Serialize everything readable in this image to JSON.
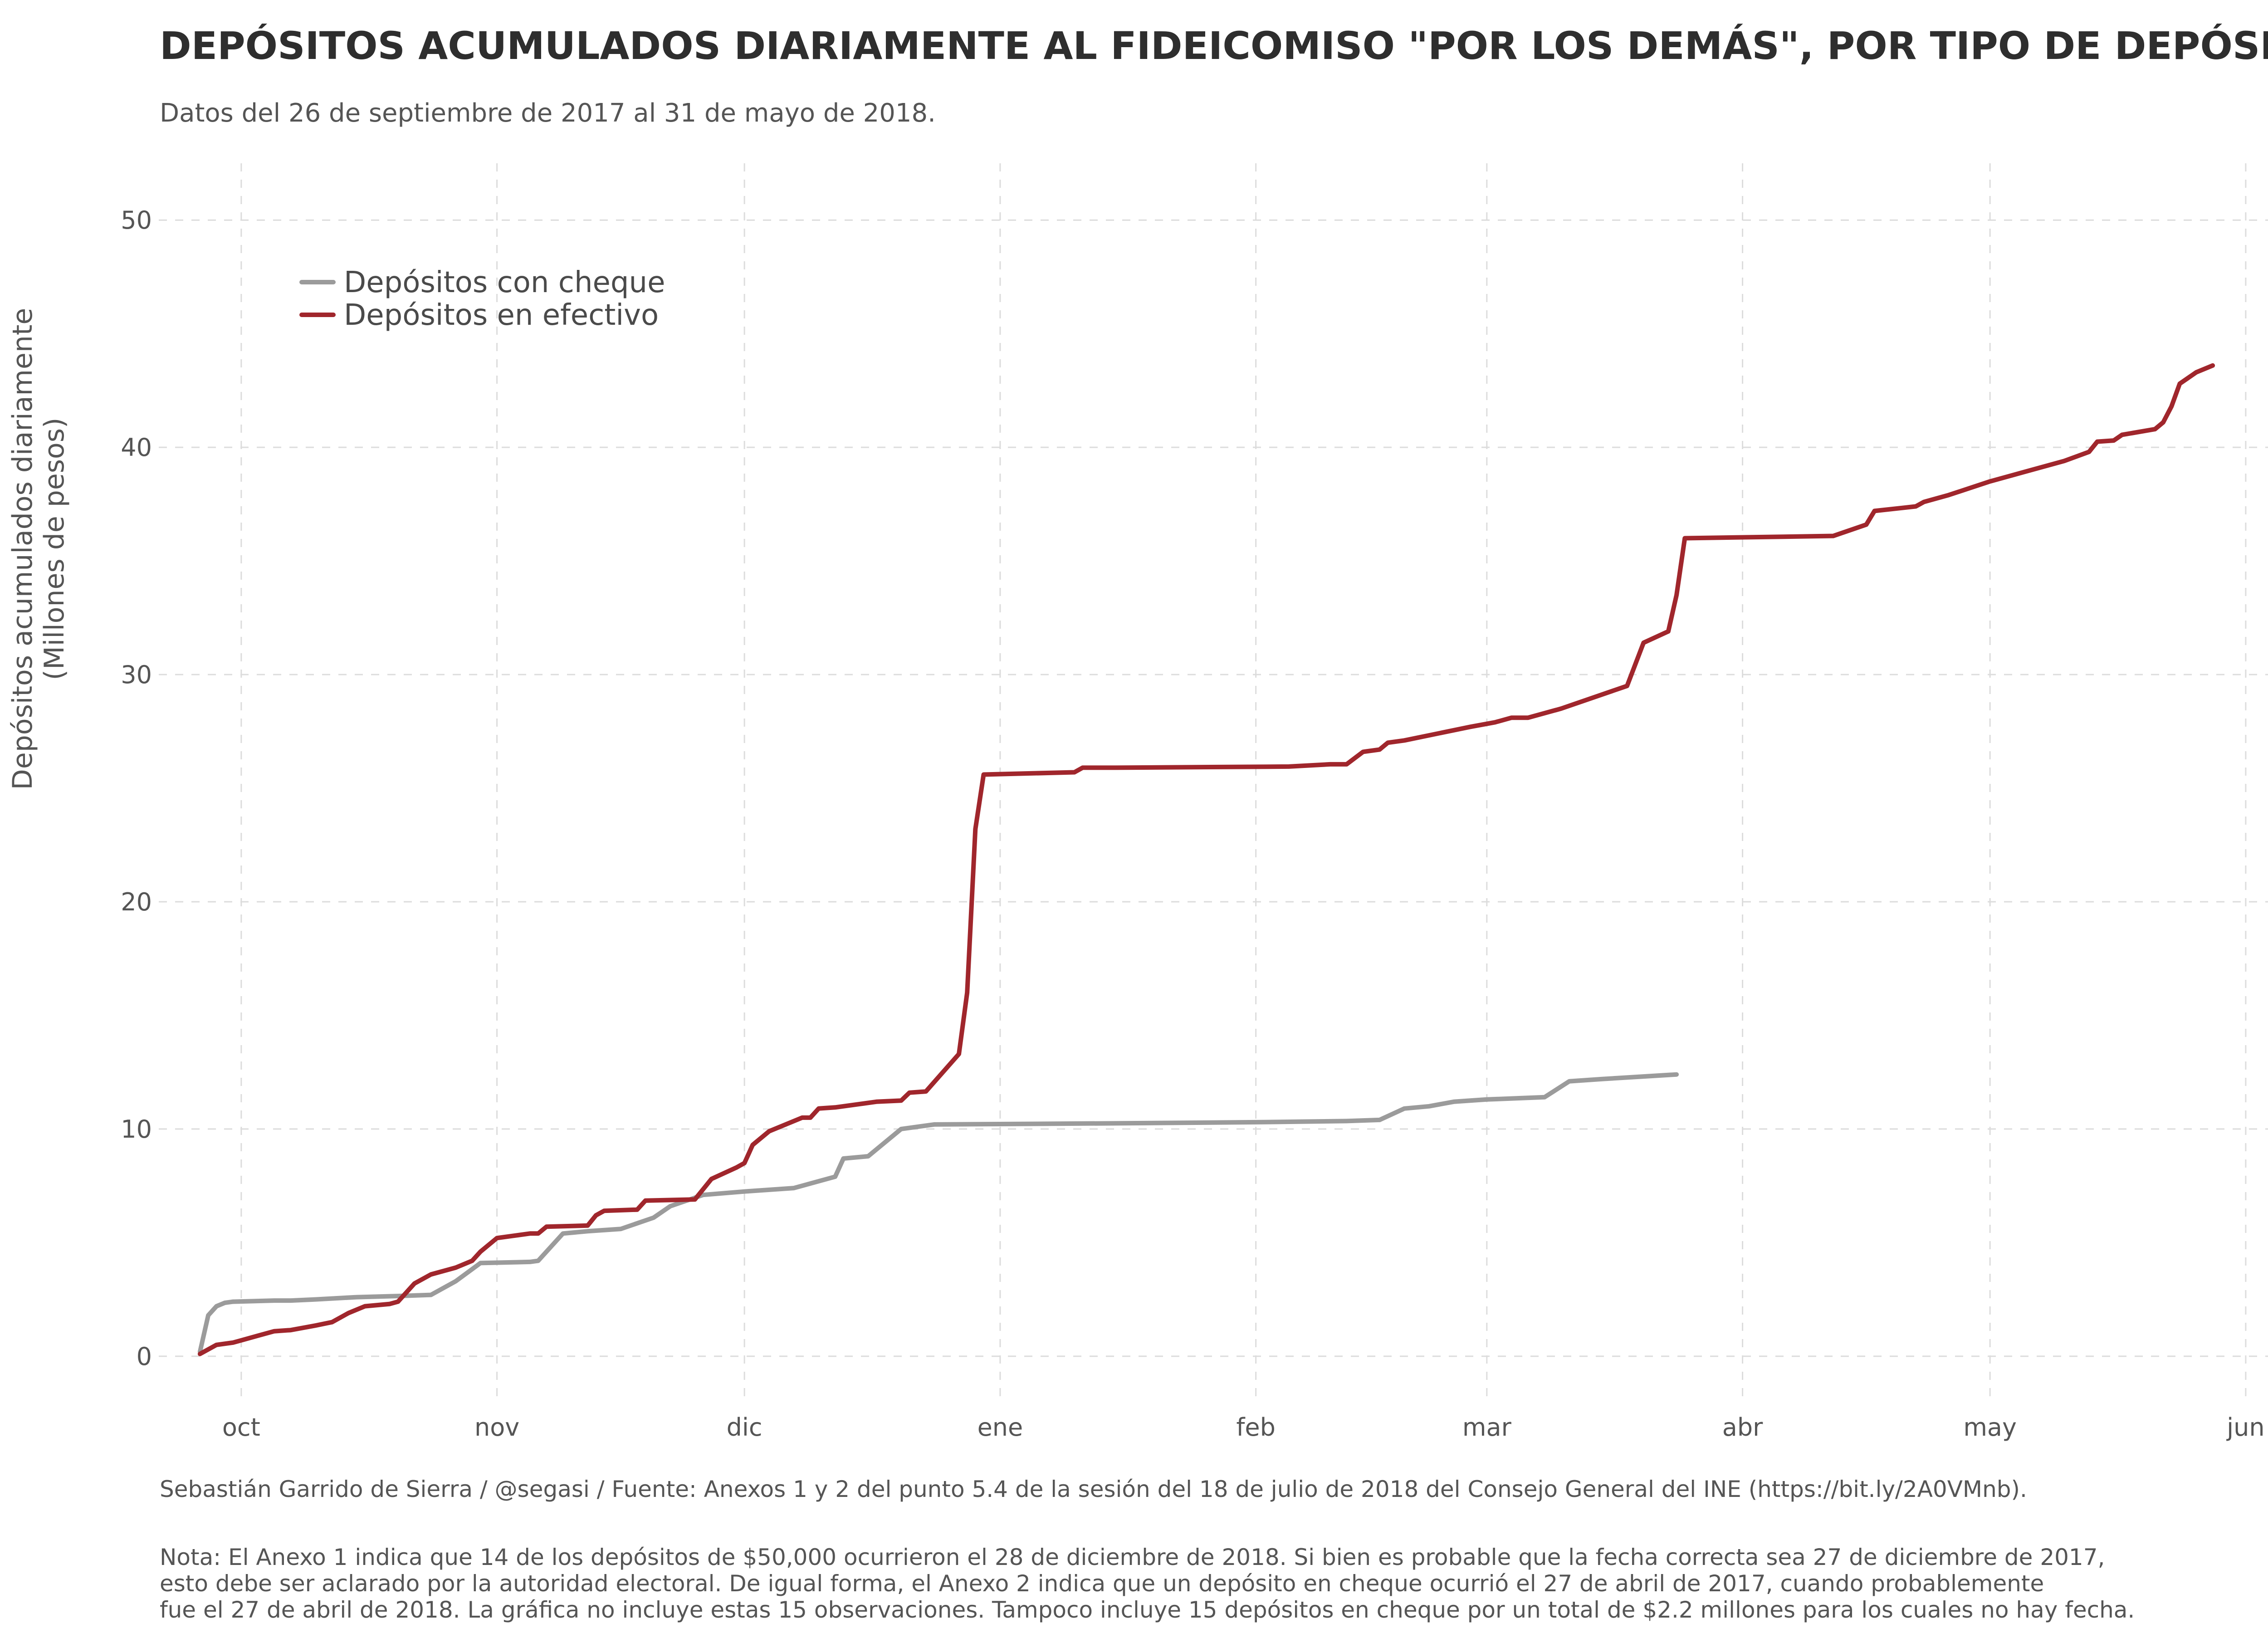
{
  "chart_data": {
    "type": "line",
    "title": "DEPÓSITOS ACUMULADOS DIARIAMENTE AL FIDEICOMISO \"POR LOS DEMÁS\", POR TIPO DE DEPÓSITO",
    "subtitle": "Datos del 26 de septiembre de 2017 al 31 de mayo de 2018.",
    "ylabel": [
      "Depósitos acumulados diariamente",
      "(Millones de pesos)"
    ],
    "xlabel": "",
    "x_axis": {
      "type": "date",
      "range": [
        "2017-09-21",
        "2018-06-07"
      ],
      "ticks": [
        {
          "date": "2017-10-01",
          "label": "oct"
        },
        {
          "date": "2017-11-01",
          "label": "nov"
        },
        {
          "date": "2017-12-01",
          "label": "dic"
        },
        {
          "date": "2018-01-01",
          "label": "ene"
        },
        {
          "date": "2018-02-01",
          "label": "feb"
        },
        {
          "date": "2018-03-01",
          "label": "mar"
        },
        {
          "date": "2018-04-01",
          "label": "abr"
        },
        {
          "date": "2018-05-01",
          "label": "may"
        },
        {
          "date": "2018-06-01",
          "label": "jun"
        }
      ]
    },
    "y_axis": {
      "range": [
        -2,
        52.5
      ],
      "ticks": [
        0,
        10,
        20,
        30,
        40,
        50
      ]
    },
    "grid": true,
    "legend_position": "top-left",
    "series": [
      {
        "name": "Depósitos con cheque",
        "color": "#9b9b9b",
        "points": [
          [
            "2017-09-26",
            0.2
          ],
          [
            "2017-09-27",
            1.8
          ],
          [
            "2017-09-28",
            2.2
          ],
          [
            "2017-09-29",
            2.35
          ],
          [
            "2017-09-30",
            2.4
          ],
          [
            "2017-10-05",
            2.45
          ],
          [
            "2017-10-07",
            2.45
          ],
          [
            "2017-10-10",
            2.5
          ],
          [
            "2017-10-15",
            2.6
          ],
          [
            "2017-10-20",
            2.65
          ],
          [
            "2017-10-24",
            2.7
          ],
          [
            "2017-10-27",
            3.3
          ],
          [
            "2017-10-30",
            4.1
          ],
          [
            "2017-11-05",
            4.15
          ],
          [
            "2017-11-06",
            4.2
          ],
          [
            "2017-11-09",
            5.4
          ],
          [
            "2017-11-12",
            5.5
          ],
          [
            "2017-11-16",
            5.6
          ],
          [
            "2017-11-20",
            6.1
          ],
          [
            "2017-11-22",
            6.6
          ],
          [
            "2017-11-26",
            7.1
          ],
          [
            "2017-12-01",
            7.25
          ],
          [
            "2017-12-07",
            7.4
          ],
          [
            "2017-12-12",
            7.9
          ],
          [
            "2017-12-13",
            8.7
          ],
          [
            "2017-12-16",
            8.8
          ],
          [
            "2017-12-20",
            10.0
          ],
          [
            "2017-12-24",
            10.2
          ],
          [
            "2018-01-15",
            10.25
          ],
          [
            "2018-02-01",
            10.3
          ],
          [
            "2018-02-12",
            10.35
          ],
          [
            "2018-02-16",
            10.4
          ],
          [
            "2018-02-19",
            10.9
          ],
          [
            "2018-02-22",
            11.0
          ],
          [
            "2018-02-25",
            11.2
          ],
          [
            "2018-03-01",
            11.3
          ],
          [
            "2018-03-08",
            11.4
          ],
          [
            "2018-03-11",
            12.1
          ],
          [
            "2018-03-15",
            12.2
          ],
          [
            "2018-03-24",
            12.4
          ]
        ]
      },
      {
        "name": "Depósitos en efectivo",
        "color": "#a0262c",
        "points": [
          [
            "2017-09-26",
            0.1
          ],
          [
            "2017-09-27",
            0.3
          ],
          [
            "2017-09-28",
            0.5
          ],
          [
            "2017-09-30",
            0.6
          ],
          [
            "2017-10-01",
            0.7
          ],
          [
            "2017-10-03",
            0.9
          ],
          [
            "2017-10-05",
            1.1
          ],
          [
            "2017-10-07",
            1.15
          ],
          [
            "2017-10-10",
            1.35
          ],
          [
            "2017-10-12",
            1.5
          ],
          [
            "2017-10-14",
            1.9
          ],
          [
            "2017-10-16",
            2.2
          ],
          [
            "2017-10-19",
            2.3
          ],
          [
            "2017-10-20",
            2.4
          ],
          [
            "2017-10-22",
            3.2
          ],
          [
            "2017-10-24",
            3.6
          ],
          [
            "2017-10-27",
            3.9
          ],
          [
            "2017-10-29",
            4.2
          ],
          [
            "2017-10-30",
            4.6
          ],
          [
            "2017-11-01",
            5.2
          ],
          [
            "2017-11-03",
            5.3
          ],
          [
            "2017-11-05",
            5.4
          ],
          [
            "2017-11-06",
            5.4
          ],
          [
            "2017-11-07",
            5.7
          ],
          [
            "2017-11-12",
            5.75
          ],
          [
            "2017-11-13",
            6.2
          ],
          [
            "2017-11-14",
            6.4
          ],
          [
            "2017-11-18",
            6.45
          ],
          [
            "2017-11-19",
            6.85
          ],
          [
            "2017-11-25",
            6.9
          ],
          [
            "2017-11-27",
            7.8
          ],
          [
            "2017-11-30",
            8.3
          ],
          [
            "2017-12-01",
            8.5
          ],
          [
            "2017-12-02",
            9.3
          ],
          [
            "2017-12-04",
            9.9
          ],
          [
            "2017-12-06",
            10.2
          ],
          [
            "2017-12-08",
            10.5
          ],
          [
            "2017-12-09",
            10.5
          ],
          [
            "2017-12-10",
            10.9
          ],
          [
            "2017-12-12",
            10.95
          ],
          [
            "2017-12-15",
            11.1
          ],
          [
            "2017-12-17",
            11.2
          ],
          [
            "2017-12-20",
            11.25
          ],
          [
            "2017-12-21",
            11.6
          ],
          [
            "2017-12-23",
            11.65
          ],
          [
            "2017-12-27",
            13.3
          ],
          [
            "2017-12-28",
            16.0
          ],
          [
            "2017-12-29",
            23.2
          ],
          [
            "2017-12-30",
            25.6
          ],
          [
            "2018-01-10",
            25.7
          ],
          [
            "2018-01-11",
            25.9
          ],
          [
            "2018-01-15",
            25.9
          ],
          [
            "2018-02-05",
            25.95
          ],
          [
            "2018-02-10",
            26.05
          ],
          [
            "2018-02-12",
            26.05
          ],
          [
            "2018-02-14",
            26.6
          ],
          [
            "2018-02-16",
            26.7
          ],
          [
            "2018-02-17",
            27.0
          ],
          [
            "2018-02-19",
            27.1
          ],
          [
            "2018-02-27",
            27.7
          ],
          [
            "2018-03-02",
            27.9
          ],
          [
            "2018-03-04",
            28.1
          ],
          [
            "2018-03-06",
            28.1
          ],
          [
            "2018-03-10",
            28.5
          ],
          [
            "2018-03-18",
            29.5
          ],
          [
            "2018-03-20",
            31.4
          ],
          [
            "2018-03-23",
            31.9
          ],
          [
            "2018-03-24",
            33.5
          ],
          [
            "2018-03-25",
            36.0
          ],
          [
            "2018-04-12",
            36.1
          ],
          [
            "2018-04-16",
            36.6
          ],
          [
            "2018-04-17",
            37.2
          ],
          [
            "2018-04-22",
            37.4
          ],
          [
            "2018-04-23",
            37.6
          ],
          [
            "2018-04-26",
            37.9
          ],
          [
            "2018-05-01",
            38.5
          ],
          [
            "2018-05-05",
            38.9
          ],
          [
            "2018-05-10",
            39.4
          ],
          [
            "2018-05-13",
            39.8
          ],
          [
            "2018-05-14",
            40.25
          ],
          [
            "2018-05-16",
            40.3
          ],
          [
            "2018-05-17",
            40.55
          ],
          [
            "2018-05-21",
            40.8
          ],
          [
            "2018-05-22",
            41.1
          ],
          [
            "2018-05-23",
            41.8
          ],
          [
            "2018-05-24",
            42.8
          ],
          [
            "2018-05-26",
            43.3
          ],
          [
            "2018-05-28",
            43.6
          ]
        ]
      }
    ]
  },
  "caption": {
    "source": "Sebastián Garrido de Sierra / @segasi / Fuente: Anexos 1 y 2 del punto 5.4 de la sesión del 18 de julio de 2018 del Consejo General del INE (https://bit.ly/2A0VMnb).",
    "note_lines": [
      "Nota: El Anexo 1 indica que 14 de los depósitos de $50,000 ocurrieron el 28 de diciembre de 2018. Si bien es probable que la fecha correcta sea 27 de diciembre de 2017,",
      "esto debe ser aclarado por la autoridad electoral. De igual forma, el Anexo 2 indica que un depósito en cheque ocurrió el 27 de abril de 2017, cuando probablemente",
      "fue el 27 de abril de 2018. La gráfica no incluye estas 15 observaciones. Tampoco incluye 15 depósitos en cheque por un total de $2.2 millones para los cuales no hay fecha."
    ]
  }
}
